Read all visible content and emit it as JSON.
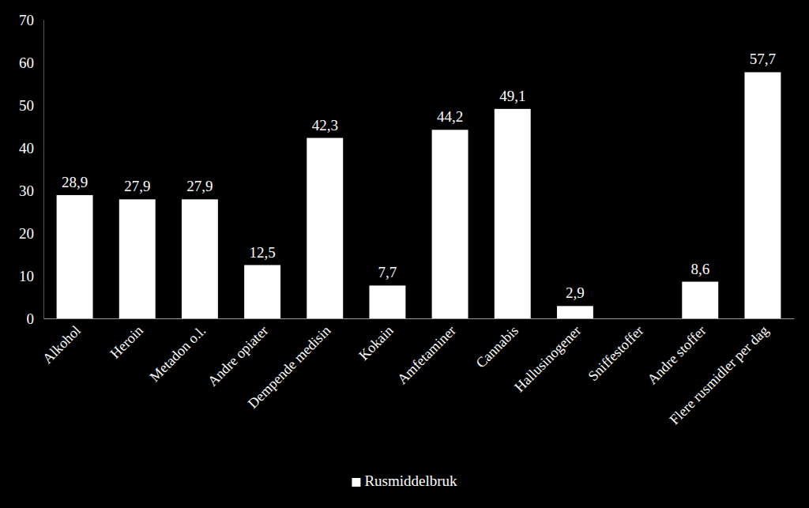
{
  "chart_data": {
    "type": "bar",
    "categories": [
      "Alkohol",
      "Heroin",
      "Metadon o.l.",
      "Andre opiater",
      "Dempende medisin",
      "Kokain",
      "Amfetaminer",
      "Cannabis",
      "Hallusinogener",
      "Sniffestoffer",
      "Andre stoffer",
      "Flere rusmidler per dag"
    ],
    "series": [
      {
        "name": "Rusmiddelbruk",
        "color": "#ffffff",
        "values": [
          28.9,
          27.9,
          27.9,
          12.5,
          42.3,
          7.7,
          44.2,
          49.1,
          2.9,
          null,
          8.6,
          57.7
        ],
        "value_labels": [
          "28,9",
          "27,9",
          "27,9",
          "12,5",
          "42,3",
          "7,7",
          "44,2",
          "49,1",
          "2,9",
          null,
          "8,6",
          "57,7"
        ]
      }
    ],
    "ylim": [
      0,
      70
    ],
    "yticks": [
      0,
      10,
      20,
      30,
      40,
      50,
      60,
      70
    ],
    "grid": false,
    "data_labels": true,
    "legend": "bottom"
  }
}
